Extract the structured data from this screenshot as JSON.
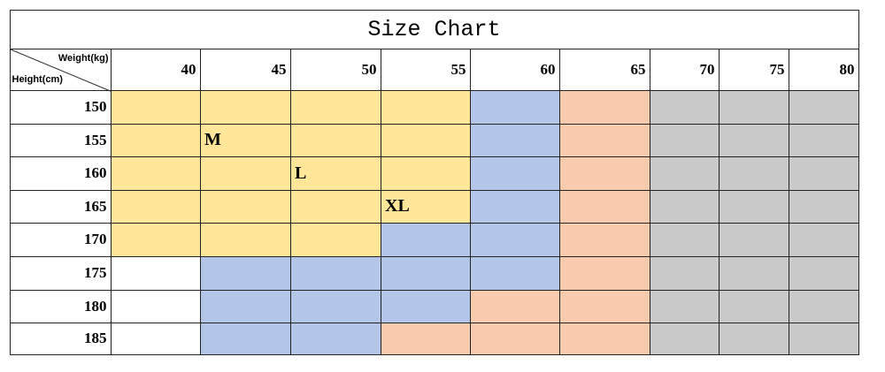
{
  "header": {
    "title": "Size Chart",
    "weight_label": "Weight(kg)",
    "height_label": "Height(cm)"
  },
  "table": {
    "weights": [
      40,
      45,
      50,
      55,
      60,
      65,
      70,
      75,
      80
    ],
    "colors": {
      "Y": "#ffe699",
      "B": "#b4c6e7",
      "S": "#f8cbad",
      "G": "#c9c9c9",
      "W": "#ffffff"
    },
    "rows": [
      {
        "height": 150,
        "fills": [
          "Y",
          "Y",
          "Y",
          "Y",
          "B",
          "S",
          "G",
          "G",
          "G"
        ]
      },
      {
        "height": 155,
        "fills": [
          "Y",
          "Y",
          "Y",
          "Y",
          "B",
          "S",
          "G",
          "G",
          "G"
        ]
      },
      {
        "height": 160,
        "fills": [
          "Y",
          "Y",
          "Y",
          "Y",
          "B",
          "S",
          "G",
          "G",
          "G"
        ]
      },
      {
        "height": 165,
        "fills": [
          "Y",
          "Y",
          "Y",
          "Y",
          "B",
          "S",
          "G",
          "G",
          "G"
        ]
      },
      {
        "height": 170,
        "fills": [
          "Y",
          "Y",
          "Y",
          "B",
          "B",
          "S",
          "G",
          "G",
          "G"
        ]
      },
      {
        "height": 175,
        "fills": [
          "W",
          "B",
          "B",
          "B",
          "B",
          "S",
          "G",
          "G",
          "G"
        ]
      },
      {
        "height": 180,
        "fills": [
          "W",
          "B",
          "B",
          "B",
          "S",
          "S",
          "G",
          "G",
          "G"
        ]
      },
      {
        "height": 185,
        "fills": [
          "W",
          "B",
          "B",
          "S",
          "S",
          "S",
          "G",
          "G",
          "G"
        ]
      }
    ],
    "size_labels": [
      {
        "text": "M",
        "row": 1,
        "col": 1
      },
      {
        "text": "L",
        "row": 2,
        "col": 2
      },
      {
        "text": "XL",
        "row": 3,
        "col": 3
      }
    ]
  }
}
